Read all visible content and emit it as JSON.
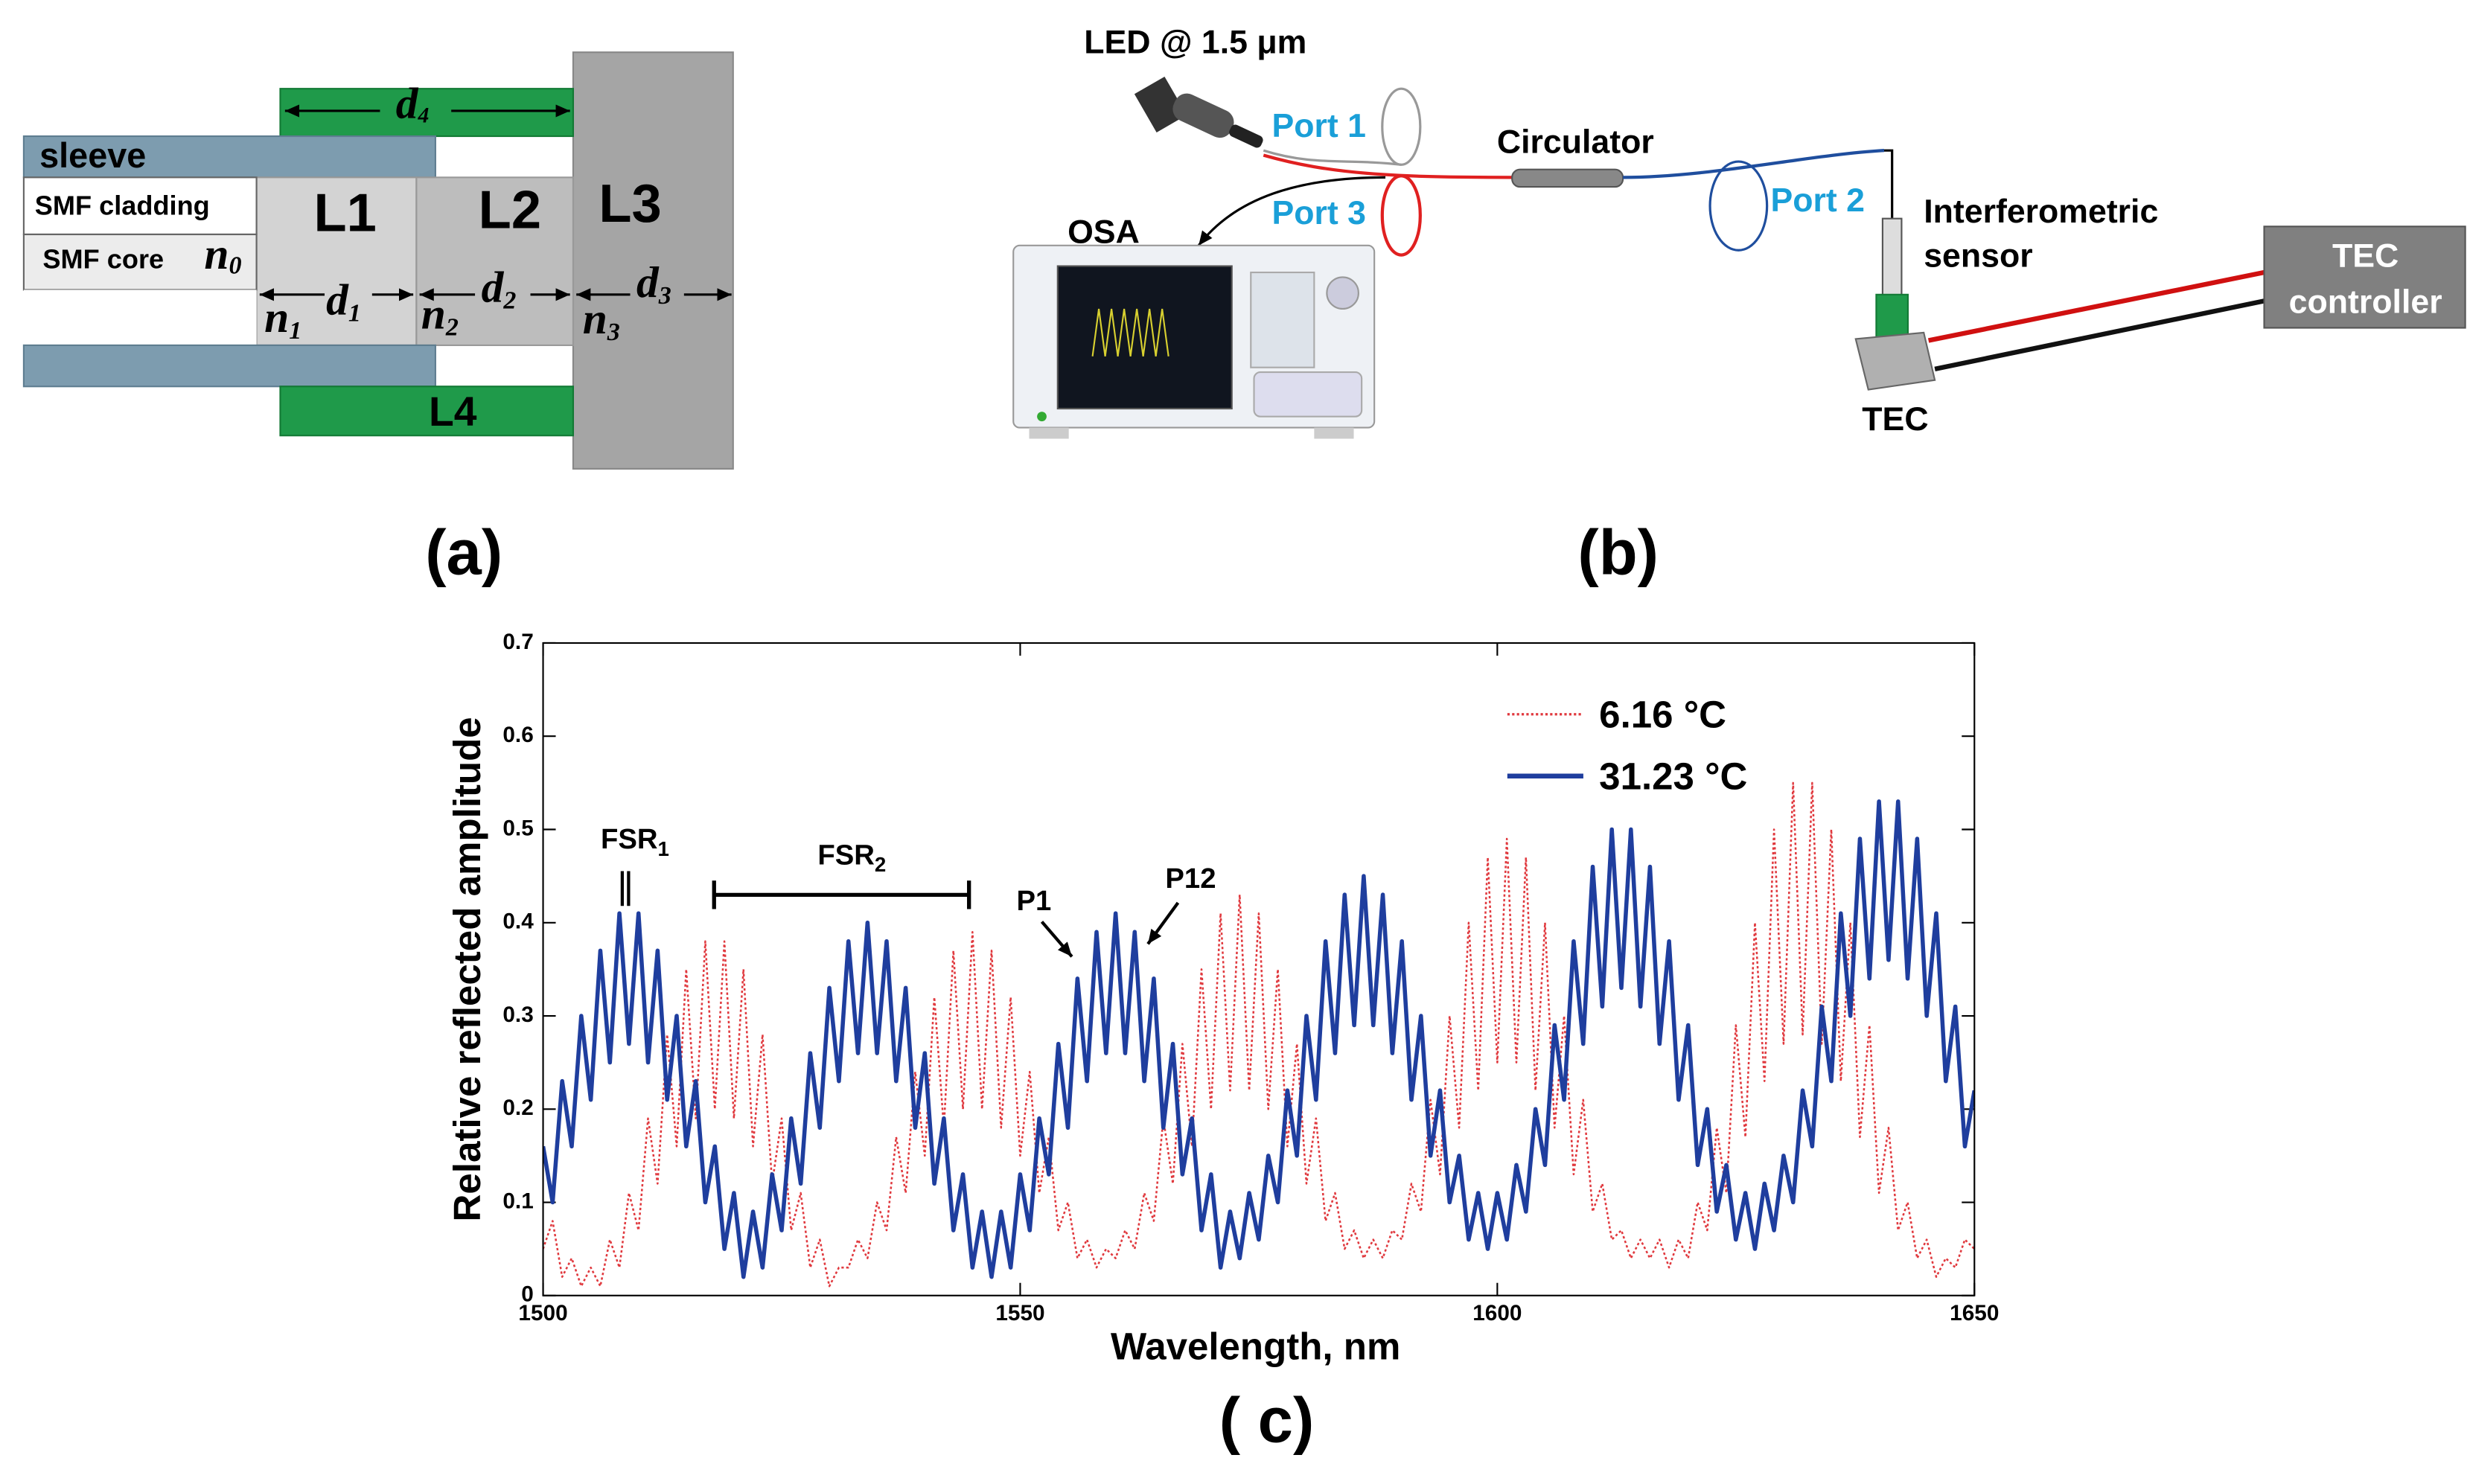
{
  "panel_a": {
    "label": "(a)",
    "sleeve": "sleeve",
    "cladding": "SMF cladding",
    "core": "SMF core",
    "layers": [
      "L1",
      "L2",
      "L3",
      "L4"
    ],
    "symbols": [
      {
        "base": "n",
        "sub": "0"
      },
      {
        "base": "d",
        "sub": "4"
      },
      {
        "base": "d",
        "sub": "1"
      },
      {
        "base": "d",
        "sub": "2"
      },
      {
        "base": "d",
        "sub": "3"
      },
      {
        "base": "n",
        "sub": "1"
      },
      {
        "base": "n",
        "sub": "2"
      },
      {
        "base": "n",
        "sub": "3"
      }
    ]
  },
  "panel_b": {
    "label": "(b)",
    "source": "LED @ 1.5 μm",
    "ports": [
      "Port 1",
      "Port 3",
      "Port 2"
    ],
    "circulator": "Circulator",
    "osa": "OSA",
    "sensor": [
      "Interferometric",
      "sensor"
    ],
    "tec": "TEC",
    "controller": [
      "TEC",
      "controller"
    ]
  },
  "chart_data": {
    "type": "line",
    "label": "( c)",
    "x_label": "Wavelength, nm",
    "y_label": "Relative reflected amplitude",
    "xlim": [
      1500,
      1650
    ],
    "xticks": [
      1500,
      1550,
      1600,
      1650
    ],
    "ylim": [
      0,
      0.7
    ],
    "yticks": [
      0,
      0.1,
      0.2,
      0.3,
      0.4,
      0.5,
      0.6,
      0.7
    ],
    "legend": "upper right",
    "annotations": [
      {
        "text": "FSR",
        "sub": "1"
      },
      {
        "text": "FSR",
        "sub": "2"
      },
      {
        "text": "P1"
      },
      {
        "text": "P12"
      }
    ],
    "x": [
      1500,
      1501,
      1502,
      1503,
      1504,
      1505,
      1506,
      1507,
      1508,
      1509,
      1510,
      1511,
      1512,
      1513,
      1514,
      1515,
      1516,
      1517,
      1518,
      1519,
      1520,
      1521,
      1522,
      1523,
      1524,
      1525,
      1526,
      1527,
      1528,
      1529,
      1530,
      1531,
      1532,
      1533,
      1534,
      1535,
      1536,
      1537,
      1538,
      1539,
      1540,
      1541,
      1542,
      1543,
      1544,
      1545,
      1546,
      1547,
      1548,
      1549,
      1550,
      1551,
      1552,
      1553,
      1554,
      1555,
      1556,
      1557,
      1558,
      1559,
      1560,
      1561,
      1562,
      1563,
      1564,
      1565,
      1566,
      1567,
      1568,
      1569,
      1570,
      1571,
      1572,
      1573,
      1574,
      1575,
      1576,
      1577,
      1578,
      1579,
      1580,
      1581,
      1582,
      1583,
      1584,
      1585,
      1586,
      1587,
      1588,
      1589,
      1590,
      1591,
      1592,
      1593,
      1594,
      1595,
      1596,
      1597,
      1598,
      1599,
      1600,
      1601,
      1602,
      1603,
      1604,
      1605,
      1606,
      1607,
      1608,
      1609,
      1610,
      1611,
      1612,
      1613,
      1614,
      1615,
      1616,
      1617,
      1618,
      1619,
      1620,
      1621,
      1622,
      1623,
      1624,
      1625,
      1626,
      1627,
      1628,
      1629,
      1630,
      1631,
      1632,
      1633,
      1634,
      1635,
      1636,
      1637,
      1638,
      1639,
      1640,
      1641,
      1642,
      1643,
      1644,
      1645,
      1646,
      1647,
      1648,
      1649,
      1650
    ],
    "series": [
      {
        "name": "6.16 °C",
        "color": "#e0393e",
        "dotted": true,
        "values": [
          0.05,
          0.08,
          0.02,
          0.04,
          0.01,
          0.03,
          0.01,
          0.06,
          0.03,
          0.11,
          0.07,
          0.19,
          0.12,
          0.28,
          0.16,
          0.35,
          0.19,
          0.38,
          0.2,
          0.38,
          0.19,
          0.35,
          0.16,
          0.28,
          0.12,
          0.19,
          0.07,
          0.11,
          0.03,
          0.06,
          0.01,
          0.03,
          0.03,
          0.06,
          0.04,
          0.1,
          0.07,
          0.17,
          0.11,
          0.24,
          0.15,
          0.32,
          0.18,
          0.37,
          0.2,
          0.39,
          0.2,
          0.37,
          0.18,
          0.32,
          0.15,
          0.24,
          0.11,
          0.17,
          0.07,
          0.1,
          0.04,
          0.06,
          0.03,
          0.05,
          0.04,
          0.07,
          0.05,
          0.11,
          0.08,
          0.19,
          0.12,
          0.27,
          0.16,
          0.35,
          0.2,
          0.41,
          0.22,
          0.43,
          0.22,
          0.41,
          0.2,
          0.35,
          0.16,
          0.27,
          0.12,
          0.19,
          0.08,
          0.11,
          0.05,
          0.07,
          0.04,
          0.06,
          0.04,
          0.07,
          0.06,
          0.12,
          0.09,
          0.21,
          0.13,
          0.3,
          0.18,
          0.4,
          0.22,
          0.47,
          0.25,
          0.49,
          0.25,
          0.47,
          0.22,
          0.4,
          0.18,
          0.3,
          0.13,
          0.21,
          0.09,
          0.12,
          0.06,
          0.07,
          0.04,
          0.06,
          0.04,
          0.06,
          0.03,
          0.06,
          0.04,
          0.1,
          0.07,
          0.18,
          0.11,
          0.29,
          0.17,
          0.4,
          0.23,
          0.5,
          0.27,
          0.55,
          0.28,
          0.55,
          0.27,
          0.5,
          0.23,
          0.4,
          0.17,
          0.29,
          0.11,
          0.18,
          0.07,
          0.1,
          0.04,
          0.06,
          0.02,
          0.04,
          0.03,
          0.06,
          0.05
        ]
      },
      {
        "name": "31.23 °C",
        "color": "#1f3e9e",
        "dotted": false,
        "values": [
          0.16,
          0.1,
          0.23,
          0.16,
          0.3,
          0.21,
          0.37,
          0.25,
          0.41,
          0.27,
          0.41,
          0.25,
          0.37,
          0.21,
          0.3,
          0.16,
          0.23,
          0.1,
          0.16,
          0.05,
          0.11,
          0.02,
          0.09,
          0.03,
          0.13,
          0.07,
          0.19,
          0.12,
          0.26,
          0.18,
          0.33,
          0.23,
          0.38,
          0.26,
          0.4,
          0.26,
          0.38,
          0.23,
          0.33,
          0.18,
          0.26,
          0.12,
          0.19,
          0.07,
          0.13,
          0.03,
          0.09,
          0.02,
          0.09,
          0.03,
          0.13,
          0.07,
          0.19,
          0.13,
          0.27,
          0.18,
          0.34,
          0.23,
          0.39,
          0.26,
          0.41,
          0.26,
          0.39,
          0.23,
          0.34,
          0.18,
          0.27,
          0.13,
          0.19,
          0.07,
          0.13,
          0.03,
          0.09,
          0.04,
          0.11,
          0.06,
          0.15,
          0.1,
          0.22,
          0.15,
          0.3,
          0.21,
          0.38,
          0.26,
          0.43,
          0.29,
          0.45,
          0.29,
          0.43,
          0.26,
          0.38,
          0.21,
          0.3,
          0.15,
          0.22,
          0.1,
          0.15,
          0.06,
          0.11,
          0.05,
          0.11,
          0.06,
          0.14,
          0.09,
          0.2,
          0.14,
          0.29,
          0.21,
          0.38,
          0.27,
          0.46,
          0.31,
          0.5,
          0.33,
          0.5,
          0.31,
          0.46,
          0.27,
          0.38,
          0.21,
          0.29,
          0.14,
          0.2,
          0.09,
          0.14,
          0.06,
          0.11,
          0.05,
          0.12,
          0.07,
          0.15,
          0.1,
          0.22,
          0.16,
          0.31,
          0.23,
          0.41,
          0.3,
          0.49,
          0.34,
          0.53,
          0.36,
          0.53,
          0.34,
          0.49,
          0.3,
          0.41,
          0.23,
          0.31,
          0.16,
          0.22
        ]
      }
    ]
  }
}
